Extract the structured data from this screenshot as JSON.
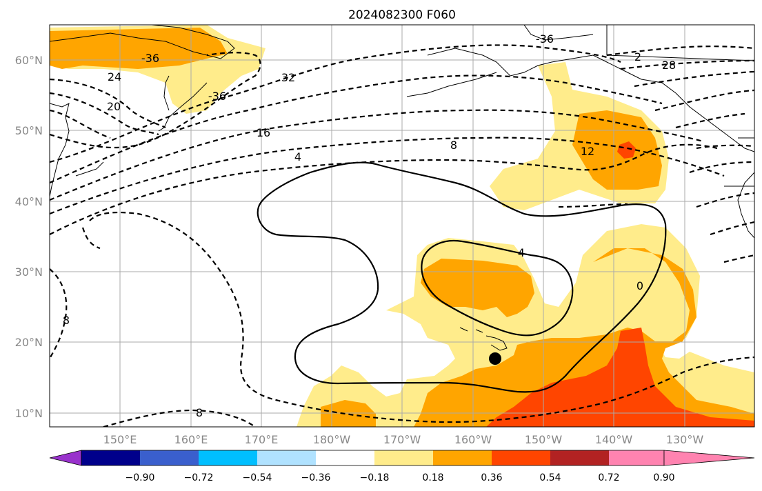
{
  "title": "2024082300 F060",
  "lat_labels": [
    "60°N",
    "50°N",
    "40°N",
    "30°N",
    "20°N",
    "10°N"
  ],
  "lon_labels": [
    "150°E",
    "160°E",
    "170°E",
    "180°W",
    "170°W",
    "160°W",
    "150°W",
    "140°W",
    "130°W"
  ],
  "colorbar": {
    "colors": [
      "#9932cc",
      "#00008b",
      "#3a5fcd",
      "#00bfff",
      "#b0e2ff",
      "#ffffff",
      "#ffec8b",
      "#ffa500",
      "#ff4500",
      "#b22222",
      "#ff83b0"
    ],
    "tick_labels": [
      "−0.90",
      "−0.72",
      "−0.54",
      "−0.36",
      "−0.18",
      "0.18",
      "0.36",
      "0.54",
      "0.72",
      "0.90"
    ]
  },
  "contour_labels": [
    "-36",
    "-36",
    "24",
    "20",
    "-36",
    "32",
    "16",
    "4",
    "8",
    "12",
    "28",
    "2",
    "4",
    "0",
    "8",
    "8"
  ],
  "marker": {
    "name": "black-dot-marker"
  }
}
